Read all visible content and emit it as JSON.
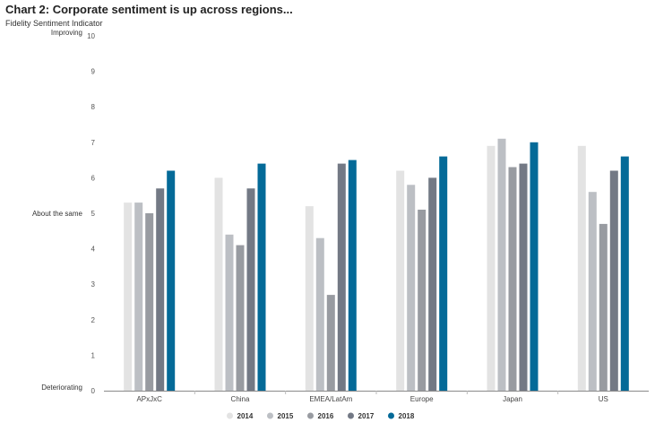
{
  "chart_data": {
    "type": "bar",
    "title": "Chart 2: Corporate sentiment is up across regions...",
    "subtitle": "Fidelity Sentiment Indicator",
    "categories": [
      "APxJxC",
      "China",
      "EMEA/LatAm",
      "Europe",
      "Japan",
      "US"
    ],
    "series": [
      {
        "name": "2014",
        "color": "#e3e3e3",
        "values": [
          5.3,
          6.0,
          5.2,
          6.2,
          6.9,
          6.9
        ]
      },
      {
        "name": "2015",
        "color": "#bcbfc4",
        "values": [
          5.3,
          4.4,
          4.3,
          5.8,
          7.1,
          5.6
        ]
      },
      {
        "name": "2016",
        "color": "#989ba1",
        "values": [
          5.0,
          4.1,
          2.7,
          5.1,
          6.3,
          4.7
        ]
      },
      {
        "name": "2017",
        "color": "#737985",
        "values": [
          5.7,
          5.7,
          6.4,
          6.0,
          6.4,
          6.2
        ]
      },
      {
        "name": "2018",
        "color": "#046a98",
        "values": [
          6.2,
          6.4,
          6.5,
          6.6,
          7.0,
          6.6
        ]
      }
    ],
    "ylim": [
      0,
      10
    ],
    "yticks": [
      "0",
      "1",
      "2",
      "3",
      "4",
      "5",
      "6",
      "7",
      "8",
      "9",
      "10"
    ],
    "y_annotations": [
      {
        "value": 10,
        "label": "Improving"
      },
      {
        "value": 5,
        "label": "About the same"
      },
      {
        "value": 0,
        "label": "Deteriorating"
      }
    ],
    "grid": false,
    "legend_position": "bottom-center"
  }
}
